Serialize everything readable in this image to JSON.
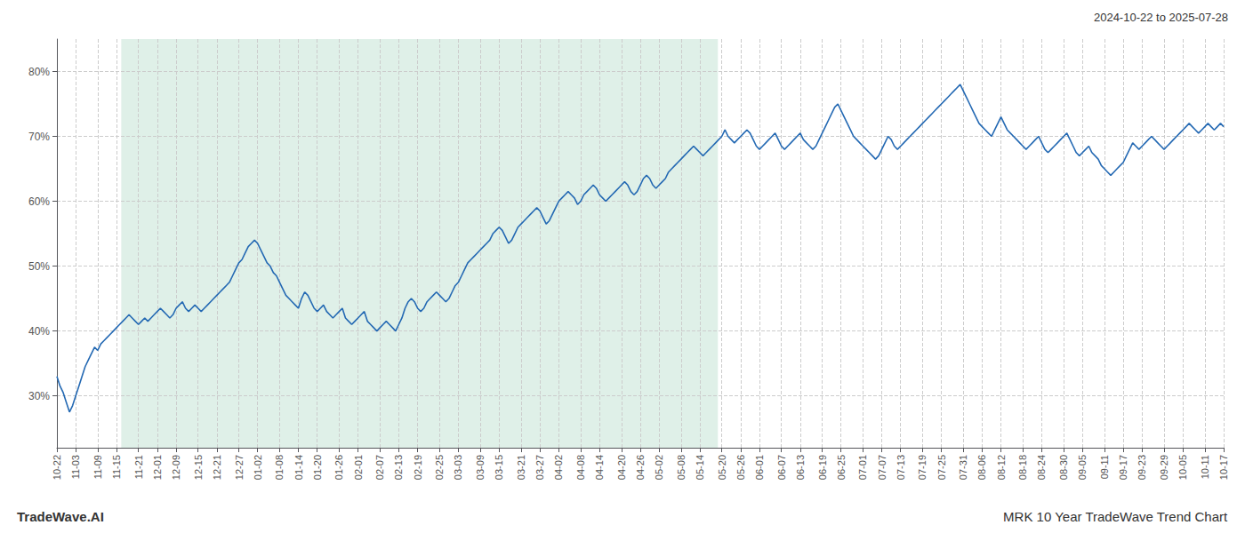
{
  "chart_data": {
    "type": "line",
    "title": "MRK 10 Year TradeWave Trend Chart",
    "subtitle": "2024-10-22 to 2025-07-28",
    "annotations": [
      "TradeWave.AI"
    ],
    "color": "#2469b3",
    "grid": true,
    "ylim": [
      22,
      85
    ],
    "yticks": [
      {
        "value": 30,
        "label": "30%"
      },
      {
        "value": 40,
        "label": "40%"
      },
      {
        "value": 50,
        "label": "50%"
      },
      {
        "value": 60,
        "label": "60%"
      },
      {
        "value": 70,
        "label": "70%"
      },
      {
        "value": 80,
        "label": "80%"
      }
    ],
    "shaded_region": {
      "start": 20.515,
      "end": 210.745,
      "color": "#dff0e8"
    },
    "categories": [
      "10-22",
      null,
      null,
      null,
      null,
      null,
      "11-03",
      null,
      null,
      null,
      null,
      null,
      null,
      "11-09",
      null,
      null,
      null,
      null,
      null,
      "11-15",
      null,
      null,
      null,
      null,
      null,
      null,
      "11-21",
      null,
      null,
      null,
      null,
      null,
      "12-01",
      null,
      null,
      null,
      null,
      null,
      "12-09",
      null,
      null,
      null,
      null,
      null,
      null,
      "12-15",
      null,
      null,
      null,
      null,
      null,
      "12-21",
      null,
      null,
      null,
      null,
      null,
      null,
      "12-27",
      null,
      null,
      null,
      null,
      null,
      "01-02",
      null,
      null,
      null,
      null,
      null,
      null,
      "01-08",
      null,
      null,
      null,
      null,
      null,
      "01-14",
      null,
      null,
      null,
      null,
      null,
      "01-20",
      null,
      null,
      null,
      null,
      null,
      null,
      "01-26",
      null,
      null,
      null,
      null,
      null,
      "02-01",
      null,
      null,
      null,
      null,
      null,
      null,
      "02-07",
      null,
      null,
      null,
      null,
      null,
      "02-13",
      null,
      null,
      null,
      null,
      null,
      "02-19",
      null,
      null,
      null,
      null,
      null,
      null,
      "02-25",
      null,
      null,
      null,
      null,
      null,
      "03-03",
      null,
      null,
      null,
      null,
      null,
      null,
      "03-09",
      null,
      null,
      null,
      null,
      null,
      "03-15",
      null,
      null,
      null,
      null,
      null,
      null,
      "03-21",
      null,
      null,
      null,
      null,
      null,
      "03-27",
      null,
      null,
      null,
      null,
      null,
      "04-02",
      null,
      null,
      null,
      null,
      null,
      null,
      "04-08",
      null,
      null,
      null,
      null,
      null,
      "04-14",
      null,
      null,
      null,
      null,
      null,
      null,
      "04-20",
      null,
      null,
      null,
      null,
      null,
      "04-26",
      null,
      null,
      null,
      null,
      null,
      "05-02",
      null,
      null,
      null,
      null,
      null,
      null,
      "05-08",
      null,
      null,
      null,
      null,
      null,
      "05-14",
      null,
      null,
      null,
      null,
      null,
      null,
      "05-20",
      null,
      null,
      null,
      null,
      null,
      "05-26",
      null,
      null,
      null,
      null,
      null,
      "06-01",
      null,
      null,
      null,
      null,
      null,
      null,
      "06-07",
      null,
      null,
      null,
      null,
      null,
      "06-13",
      null,
      null,
      null,
      null,
      null,
      null,
      "06-19",
      null,
      null,
      null,
      null,
      null,
      "06-25",
      null,
      null,
      null,
      null,
      null,
      null,
      "07-01",
      null,
      null,
      null,
      null,
      null,
      "07-07",
      null,
      null,
      null,
      null,
      null,
      "07-13",
      null,
      null,
      null,
      null,
      null,
      null,
      "07-19",
      null,
      null,
      null,
      null,
      null,
      "07-25",
      null,
      null,
      null,
      null,
      null,
      null,
      "07-31",
      null,
      null,
      null,
      null,
      null,
      "08-06",
      null,
      null,
      null,
      null,
      null,
      "08-12",
      null,
      null,
      null,
      null,
      null,
      null,
      "08-18",
      null,
      null,
      null,
      null,
      null,
      "08-24",
      null,
      null,
      null,
      null,
      null,
      null,
      "08-30",
      null,
      null,
      null,
      null,
      null,
      "09-05",
      null,
      null,
      null,
      null,
      null,
      null,
      "09-11",
      null,
      null,
      null,
      null,
      null,
      "09-17",
      null,
      null,
      null,
      null,
      null,
      "09-23",
      null,
      null,
      null,
      null,
      null,
      null,
      "09-29",
      null,
      null,
      null,
      null,
      null,
      "10-05",
      null,
      null,
      null,
      null,
      null,
      null,
      "10-11",
      null,
      null,
      null,
      null,
      null,
      "10-17"
    ],
    "values": [
      33.0,
      31.5,
      30.5,
      29.0,
      27.5,
      28.5,
      30.0,
      31.5,
      33.0,
      34.5,
      35.5,
      36.5,
      37.5,
      37.0,
      38.0,
      38.5,
      39.0,
      39.5,
      40.0,
      40.5,
      41.0,
      41.5,
      42.0,
      42.5,
      42.0,
      41.5,
      41.0,
      41.5,
      42.0,
      41.5,
      42.0,
      42.5,
      43.0,
      43.5,
      43.0,
      42.5,
      42.0,
      42.5,
      43.5,
      44.0,
      44.5,
      43.5,
      43.0,
      43.5,
      44.0,
      43.5,
      43.0,
      43.5,
      44.0,
      44.5,
      45.0,
      45.5,
      46.0,
      46.5,
      47.0,
      47.5,
      48.5,
      49.5,
      50.5,
      51.0,
      52.0,
      53.0,
      53.5,
      54.0,
      53.5,
      52.5,
      51.5,
      50.5,
      50.0,
      49.0,
      48.5,
      47.5,
      46.5,
      45.5,
      45.0,
      44.5,
      44.0,
      43.5,
      45.0,
      46.0,
      45.5,
      44.5,
      43.5,
      43.0,
      43.5,
      44.0,
      43.0,
      42.5,
      42.0,
      42.5,
      43.0,
      43.5,
      42.0,
      41.5,
      41.0,
      41.5,
      42.0,
      42.5,
      43.0,
      41.5,
      41.0,
      40.5,
      40.0,
      40.5,
      41.0,
      41.5,
      41.0,
      40.5,
      40.0,
      41.0,
      42.0,
      43.5,
      44.5,
      45.0,
      44.5,
      43.5,
      43.0,
      43.5,
      44.5,
      45.0,
      45.5,
      46.0,
      45.5,
      45.0,
      44.5,
      45.0,
      46.0,
      47.0,
      47.5,
      48.5,
      49.5,
      50.5,
      51.0,
      51.5,
      52.0,
      52.5,
      53.0,
      53.5,
      54.0,
      55.0,
      55.5,
      56.0,
      55.5,
      54.5,
      53.5,
      54.0,
      55.0,
      56.0,
      56.5,
      57.0,
      57.5,
      58.0,
      58.5,
      59.0,
      58.5,
      57.5,
      56.5,
      57.0,
      58.0,
      59.0,
      60.0,
      60.5,
      61.0,
      61.5,
      61.0,
      60.5,
      59.5,
      60.0,
      61.0,
      61.5,
      62.0,
      62.5,
      62.0,
      61.0,
      60.5,
      60.0,
      60.5,
      61.0,
      61.5,
      62.0,
      62.5,
      63.0,
      62.5,
      61.5,
      61.0,
      61.5,
      62.5,
      63.5,
      64.0,
      63.5,
      62.5,
      62.0,
      62.5,
      63.0,
      63.5,
      64.5,
      65.0,
      65.5,
      66.0,
      66.5,
      67.0,
      67.5,
      68.0,
      68.5,
      68.0,
      67.5,
      67.0,
      67.5,
      68.0,
      68.5,
      69.0,
      69.5,
      70.0,
      71.0,
      70.0,
      69.5,
      69.0,
      69.5,
      70.0,
      70.5,
      71.0,
      70.5,
      69.5,
      68.5,
      68.0,
      68.5,
      69.0,
      69.5,
      70.0,
      70.5,
      69.5,
      68.5,
      68.0,
      68.5,
      69.0,
      69.5,
      70.0,
      70.5,
      69.5,
      69.0,
      68.5,
      68.0,
      68.5,
      69.5,
      70.5,
      71.5,
      72.5,
      73.5,
      74.5,
      75.0,
      74.0,
      73.0,
      72.0,
      71.0,
      70.0,
      69.5,
      69.0,
      68.5,
      68.0,
      67.5,
      67.0,
      66.5,
      67.0,
      68.0,
      69.0,
      70.0,
      69.5,
      68.5,
      68.0,
      68.5,
      69.0,
      69.5,
      70.0,
      70.5,
      71.0,
      71.5,
      72.0,
      72.5,
      73.0,
      73.5,
      74.0,
      74.5,
      75.0,
      75.5,
      76.0,
      76.5,
      77.0,
      77.5,
      78.0,
      77.0,
      76.0,
      75.0,
      74.0,
      73.0,
      72.0,
      71.5,
      71.0,
      70.5,
      70.0,
      71.0,
      72.0,
      73.0,
      72.0,
      71.0,
      70.5,
      70.0,
      69.5,
      69.0,
      68.5,
      68.0,
      68.5,
      69.0,
      69.5,
      70.0,
      69.0,
      68.0,
      67.5,
      68.0,
      68.5,
      69.0,
      69.5,
      70.0,
      70.5,
      69.5,
      68.5,
      67.5,
      67.0,
      67.5,
      68.0,
      68.5,
      67.5,
      67.0,
      66.5,
      65.5,
      65.0,
      64.5,
      64.0,
      64.5,
      65.0,
      65.5,
      66.0,
      67.0,
      68.0,
      69.0,
      68.5,
      68.0,
      68.5,
      69.0,
      69.5,
      70.0,
      69.5,
      69.0,
      68.5,
      68.0,
      68.5,
      69.0,
      69.5,
      70.0,
      70.5,
      71.0,
      71.5,
      72.0,
      71.5,
      71.0,
      70.5,
      71.0,
      71.5,
      72.0,
      71.5,
      71.0,
      71.5,
      72.0,
      71.5
    ]
  }
}
